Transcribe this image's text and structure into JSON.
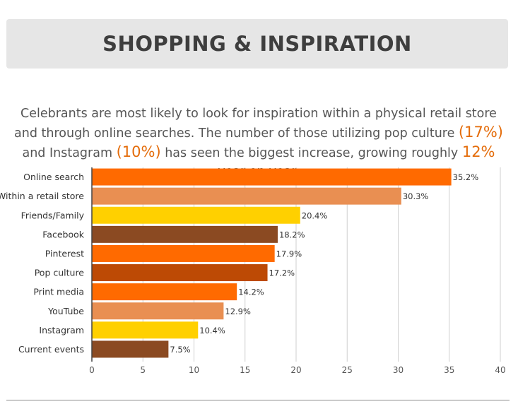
{
  "header": {
    "title": "SHOPPING & INSPIRATION"
  },
  "intro": {
    "part1": "Celebrants are most likely to look for inspiration within a physical retail store and through online searches. The number of those utilizing pop culture ",
    "pop_culture_pct": "(17%)",
    "part2": " and Instagram ",
    "instagram_pct": "(10%)",
    "part3": " has seen the biggest increase, growing roughly ",
    "growth_pct": "12%",
    "part4": " year-on-year."
  },
  "chart_data": {
    "type": "bar",
    "orientation": "horizontal",
    "title": "",
    "xlabel": "",
    "ylabel": "",
    "xlim": [
      0,
      40
    ],
    "x_ticks": [
      0,
      5,
      10,
      15,
      20,
      25,
      30,
      35,
      40
    ],
    "grid": true,
    "categories": [
      "Online search",
      "Within a retail store",
      "Friends/Family",
      "Facebook",
      "Pinterest",
      "Pop culture",
      "Print media",
      "YouTube",
      "Instagram",
      "Current events"
    ],
    "values": [
      35.2,
      30.3,
      20.4,
      18.2,
      17.9,
      17.2,
      14.2,
      12.9,
      10.4,
      7.5
    ],
    "value_labels": [
      "35.2%",
      "30.3%",
      "20.4%",
      "18.2%",
      "17.9%",
      "17.2%",
      "14.2%",
      "12.9%",
      "10.4%",
      "7.5%"
    ],
    "colors": [
      "#ff6a00",
      "#e98f52",
      "#ffd000",
      "#8b4a22",
      "#ff6a00",
      "#bd4a05",
      "#ff6a00",
      "#e98f52",
      "#ffd000",
      "#8b4a22"
    ]
  }
}
